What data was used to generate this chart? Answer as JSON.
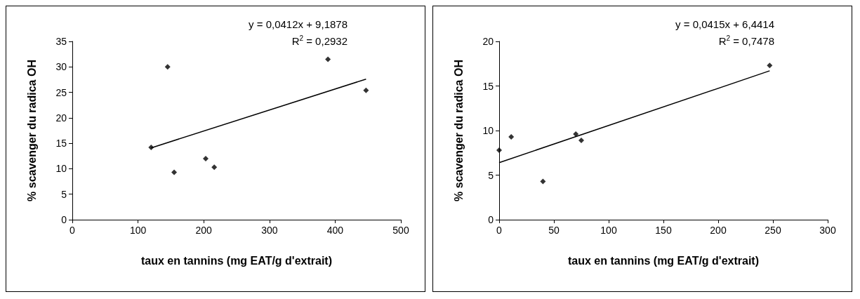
{
  "chart_data": [
    {
      "type": "scatter",
      "xlabel": "taux en tannins (mg EAT/g d'extrait)",
      "ylabel": "% scavenger du radica OH",
      "xlim": [
        0,
        500
      ],
      "xticks": [
        0,
        100,
        200,
        300,
        400,
        500
      ],
      "ylim": [
        0,
        35
      ],
      "yticks": [
        0,
        5,
        10,
        15,
        20,
        25,
        30,
        35
      ],
      "grid": false,
      "marker": "diamond",
      "annotations": [
        "y = 0,0412x + 9,1878",
        "R$^{2}$ = 0,2932"
      ],
      "series": [
        {
          "color": "#000000",
          "x": [
            120,
            145,
            155,
            203,
            216,
            389,
            447
          ],
          "values": [
            14.2,
            30,
            9.3,
            12,
            10.3,
            31.5,
            25.4
          ]
        },
        {
          "type": "line",
          "color": "#000000",
          "marker": "none",
          "line_style": "solid",
          "x": [
            120,
            447
          ],
          "values": [
            14.1,
            27.6
          ]
        }
      ]
    },
    {
      "type": "scatter",
      "xlabel": "taux en tannins (mg EAT/g d'extrait)",
      "ylabel": "% scavenger du radica OH",
      "xlim": [
        0,
        300
      ],
      "xticks": [
        0,
        50,
        100,
        150,
        200,
        250,
        300
      ],
      "ylim": [
        0,
        20
      ],
      "yticks": [
        0,
        5,
        10,
        15,
        20
      ],
      "grid": false,
      "marker": "diamond",
      "annotations": [
        "y = 0,0415x + 6,4414",
        "R$^{2}$ = 0,7478"
      ],
      "series": [
        {
          "color": "#000000",
          "x": [
            0,
            11,
            40,
            70,
            75,
            247
          ],
          "values": [
            7.8,
            9.3,
            4.3,
            9.6,
            8.9,
            17.3
          ]
        },
        {
          "type": "line",
          "color": "#000000",
          "marker": "none",
          "line_style": "solid",
          "x": [
            0,
            247
          ],
          "values": [
            6.4,
            16.7
          ]
        }
      ]
    }
  ]
}
